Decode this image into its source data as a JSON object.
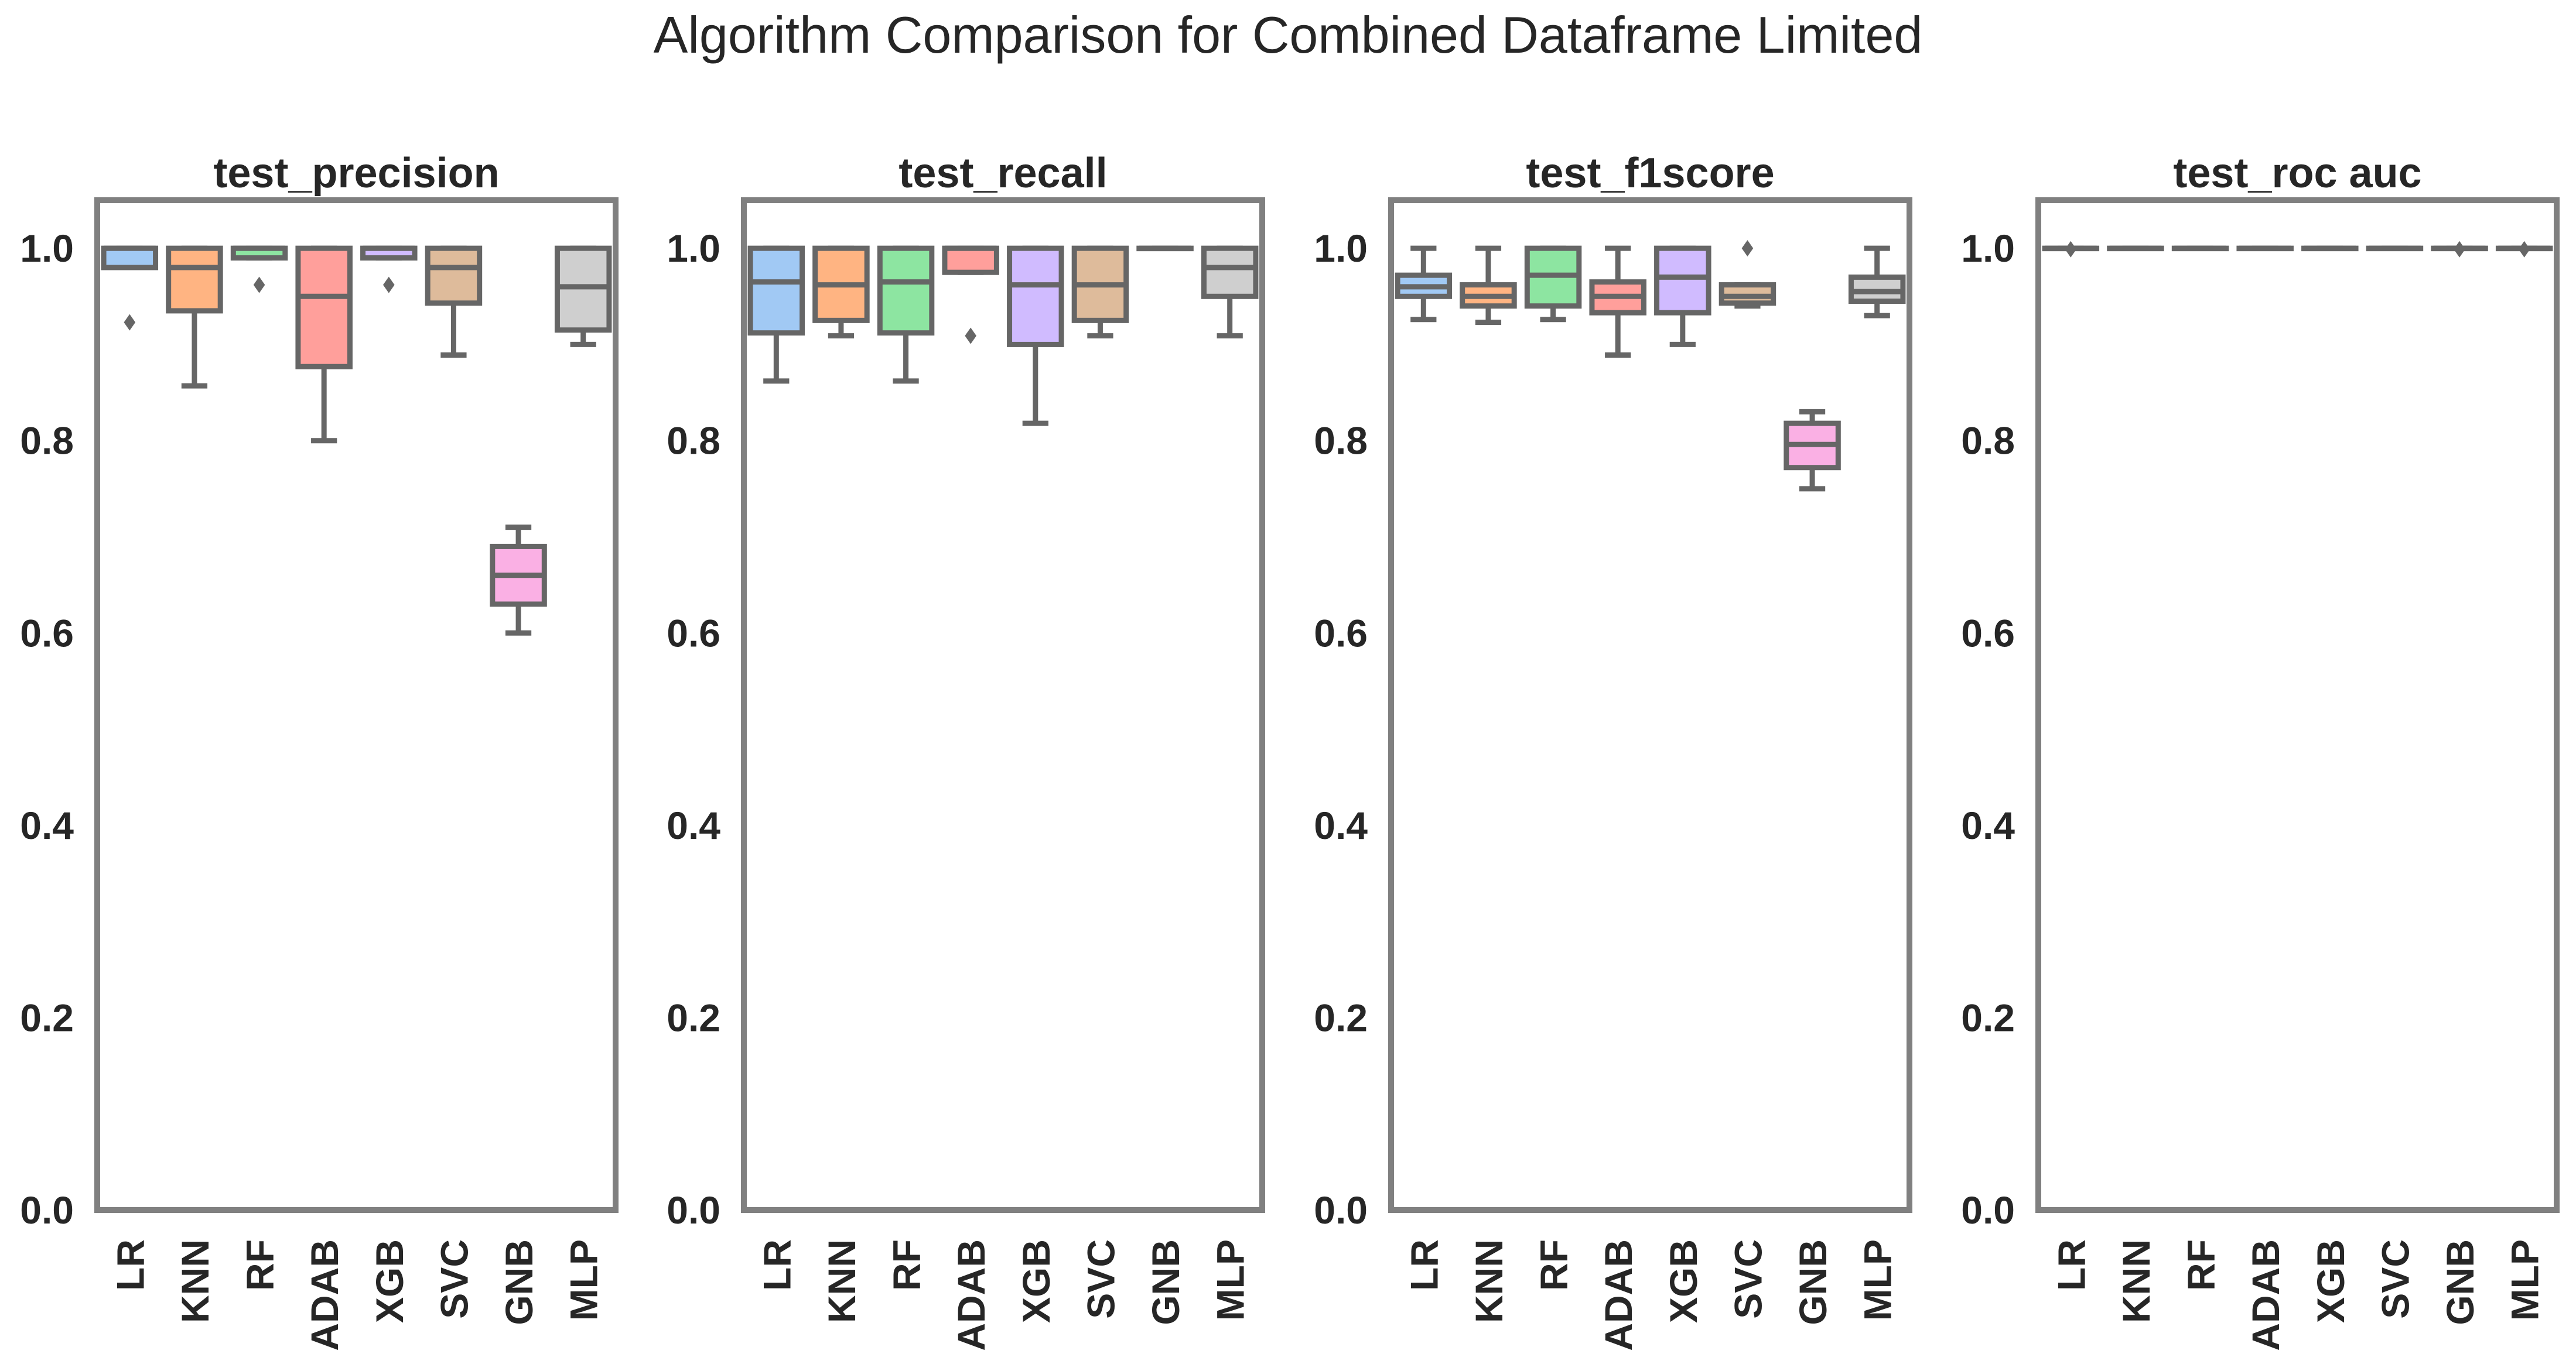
{
  "chart_data": {
    "suptitle": "Algorithm Comparison for Combined Dataframe Limited",
    "type": "box",
    "categories": [
      "LR",
      "KNN",
      "RF",
      "ADAB",
      "XGB",
      "SVC",
      "GNB",
      "MLP"
    ],
    "ylim": [
      0.0,
      1.05
    ],
    "yticks": [
      "0.0",
      "0.2",
      "0.4",
      "0.6",
      "0.8",
      "1.0"
    ],
    "grid": false,
    "colors": [
      "#a1c9f4",
      "#ffb482",
      "#8de5a1",
      "#ff9f9b",
      "#d0bbff",
      "#debb9b",
      "#fab0e4",
      "#cfcfcf"
    ],
    "line_color": "#666666",
    "frame_color": "#808080",
    "panels": [
      {
        "title": "test_precision",
        "boxes": [
          {
            "whislo": 0.98,
            "q1": 0.98,
            "med": 1.0,
            "q3": 1.0,
            "whishi": 1.0,
            "fliers": [
              0.923
            ]
          },
          {
            "whislo": 0.857,
            "q1": 0.935,
            "med": 0.98,
            "q3": 1.0,
            "whishi": 1.0,
            "fliers": []
          },
          {
            "whislo": 0.99,
            "q1": 0.99,
            "med": 1.0,
            "q3": 1.0,
            "whishi": 1.0,
            "fliers": [
              0.962
            ]
          },
          {
            "whislo": 0.8,
            "q1": 0.877,
            "med": 0.95,
            "q3": 1.0,
            "whishi": 1.0,
            "fliers": []
          },
          {
            "whislo": 0.99,
            "q1": 0.99,
            "med": 1.0,
            "q3": 1.0,
            "whishi": 1.0,
            "fliers": [
              0.962
            ]
          },
          {
            "whislo": 0.889,
            "q1": 0.943,
            "med": 0.98,
            "q3": 1.0,
            "whishi": 1.0,
            "fliers": []
          },
          {
            "whislo": 0.6,
            "q1": 0.63,
            "med": 0.66,
            "q3": 0.69,
            "whishi": 0.71,
            "fliers": []
          },
          {
            "whislo": 0.9,
            "q1": 0.915,
            "med": 0.96,
            "q3": 1.0,
            "whishi": 1.0,
            "fliers": []
          }
        ]
      },
      {
        "title": "test_recall",
        "boxes": [
          {
            "whislo": 0.862,
            "q1": 0.912,
            "med": 0.965,
            "q3": 1.0,
            "whishi": 1.0,
            "fliers": []
          },
          {
            "whislo": 0.909,
            "q1": 0.925,
            "med": 0.962,
            "q3": 1.0,
            "whishi": 1.0,
            "fliers": []
          },
          {
            "whislo": 0.862,
            "q1": 0.912,
            "med": 0.965,
            "q3": 1.0,
            "whishi": 1.0,
            "fliers": []
          },
          {
            "whislo": 0.975,
            "q1": 0.975,
            "med": 1.0,
            "q3": 1.0,
            "whishi": 1.0,
            "fliers": [
              0.909
            ]
          },
          {
            "whislo": 0.818,
            "q1": 0.9,
            "med": 0.962,
            "q3": 1.0,
            "whishi": 1.0,
            "fliers": []
          },
          {
            "whislo": 0.909,
            "q1": 0.925,
            "med": 0.962,
            "q3": 1.0,
            "whishi": 1.0,
            "fliers": []
          },
          {
            "whislo": 1.0,
            "q1": 1.0,
            "med": 1.0,
            "q3": 1.0,
            "whishi": 1.0,
            "fliers": []
          },
          {
            "whislo": 0.909,
            "q1": 0.95,
            "med": 0.98,
            "q3": 1.0,
            "whishi": 1.0,
            "fliers": []
          }
        ]
      },
      {
        "title": "test_f1score",
        "boxes": [
          {
            "whislo": 0.926,
            "q1": 0.95,
            "med": 0.96,
            "q3": 0.972,
            "whishi": 1.0,
            "fliers": []
          },
          {
            "whislo": 0.923,
            "q1": 0.94,
            "med": 0.95,
            "q3": 0.962,
            "whishi": 1.0,
            "fliers": []
          },
          {
            "whislo": 0.926,
            "q1": 0.94,
            "med": 0.972,
            "q3": 1.0,
            "whishi": 1.0,
            "fliers": []
          },
          {
            "whislo": 0.889,
            "q1": 0.933,
            "med": 0.95,
            "q3": 0.965,
            "whishi": 1.0,
            "fliers": []
          },
          {
            "whislo": 0.9,
            "q1": 0.933,
            "med": 0.97,
            "q3": 1.0,
            "whishi": 1.0,
            "fliers": []
          },
          {
            "whislo": 0.94,
            "q1": 0.943,
            "med": 0.95,
            "q3": 0.962,
            "whishi": 0.962,
            "fliers": [
              1.0
            ]
          },
          {
            "whislo": 0.75,
            "q1": 0.772,
            "med": 0.796,
            "q3": 0.818,
            "whishi": 0.83,
            "fliers": []
          },
          {
            "whislo": 0.93,
            "q1": 0.945,
            "med": 0.955,
            "q3": 0.97,
            "whishi": 1.0,
            "fliers": []
          }
        ]
      },
      {
        "title": "test_roc auc",
        "boxes": [
          {
            "whislo": 1.0,
            "q1": 1.0,
            "med": 1.0,
            "q3": 1.0,
            "whishi": 1.0,
            "fliers": [
              0.999
            ]
          },
          {
            "whislo": 1.0,
            "q1": 1.0,
            "med": 1.0,
            "q3": 1.0,
            "whishi": 1.0,
            "fliers": []
          },
          {
            "whislo": 1.0,
            "q1": 1.0,
            "med": 1.0,
            "q3": 1.0,
            "whishi": 1.0,
            "fliers": []
          },
          {
            "whislo": 1.0,
            "q1": 1.0,
            "med": 1.0,
            "q3": 1.0,
            "whishi": 1.0,
            "fliers": []
          },
          {
            "whislo": 1.0,
            "q1": 1.0,
            "med": 1.0,
            "q3": 1.0,
            "whishi": 1.0,
            "fliers": []
          },
          {
            "whislo": 1.0,
            "q1": 1.0,
            "med": 1.0,
            "q3": 1.0,
            "whishi": 1.0,
            "fliers": []
          },
          {
            "whislo": 1.0,
            "q1": 1.0,
            "med": 1.0,
            "q3": 1.0,
            "whishi": 1.0,
            "fliers": [
              0.999
            ]
          },
          {
            "whislo": 1.0,
            "q1": 1.0,
            "med": 1.0,
            "q3": 1.0,
            "whishi": 1.0,
            "fliers": [
              0.999
            ]
          }
        ]
      }
    ]
  }
}
